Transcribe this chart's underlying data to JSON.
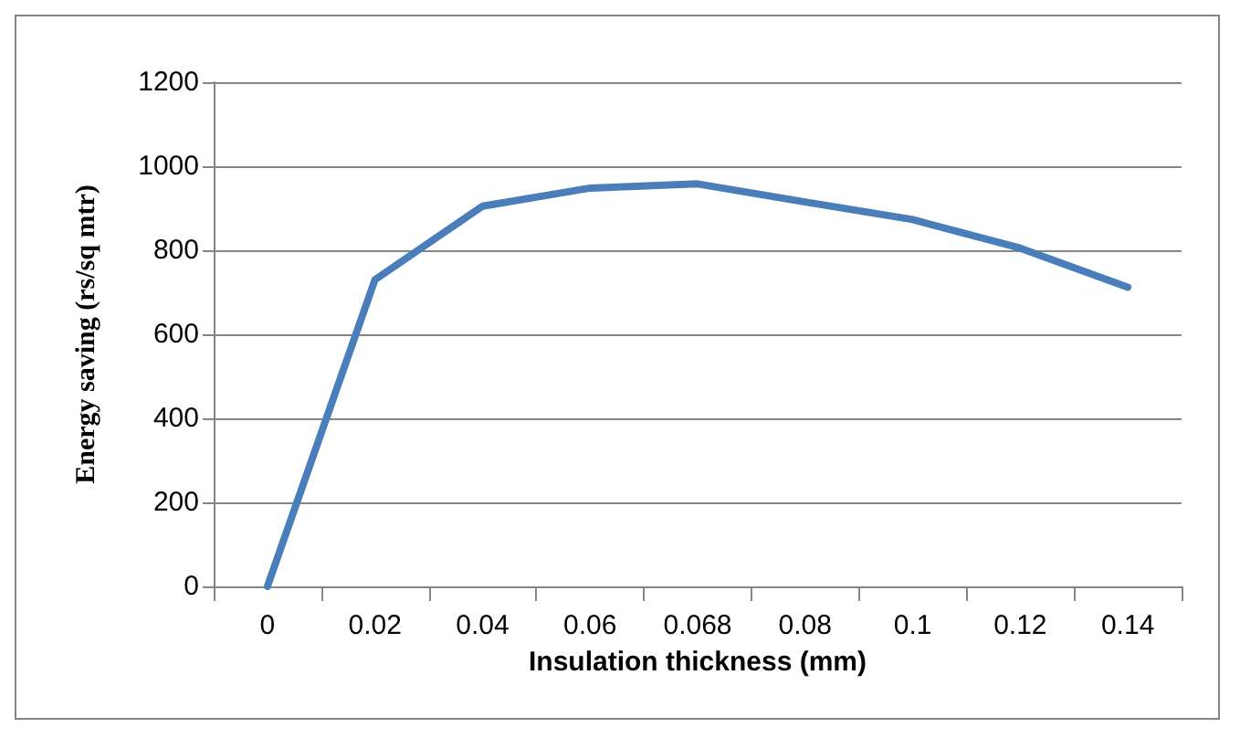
{
  "chart_data": {
    "type": "line",
    "xlabel": "Insulation thickness (mm)",
    "ylabel": "Energy saving (rs/sq mtr)",
    "categories": [
      "0",
      "0.02",
      "0.04",
      "0.06",
      "0.068",
      "0.08",
      "0.1",
      "0.12",
      "0.14"
    ],
    "series": [
      {
        "color": "#4a7ebb",
        "values": [
          0,
          730,
          905,
          948,
          958,
          915,
          873,
          805,
          712
        ]
      }
    ],
    "ylim": [
      0,
      1200
    ],
    "yticks": [
      0,
      200,
      400,
      600,
      800,
      1000,
      1200
    ],
    "grid": "y",
    "marker": "none",
    "line_style": "solid"
  }
}
